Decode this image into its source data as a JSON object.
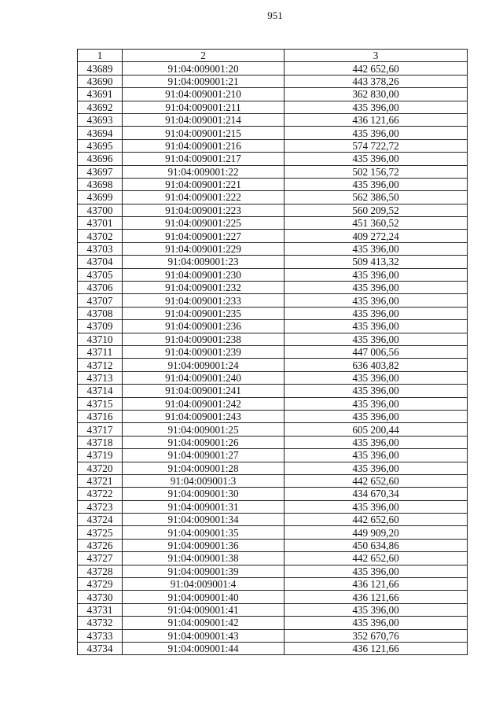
{
  "page_number": "951",
  "table": {
    "headers": [
      "1",
      "2",
      "3"
    ],
    "rows": [
      [
        "43689",
        "91:04:009001:20",
        "442 652,60"
      ],
      [
        "43690",
        "91:04:009001:21",
        "443 378,26"
      ],
      [
        "43691",
        "91:04:009001:210",
        "362 830,00"
      ],
      [
        "43692",
        "91:04:009001:211",
        "435 396,00"
      ],
      [
        "43693",
        "91:04:009001:214",
        "436 121,66"
      ],
      [
        "43694",
        "91:04:009001:215",
        "435 396,00"
      ],
      [
        "43695",
        "91:04:009001:216",
        "574 722,72"
      ],
      [
        "43696",
        "91:04:009001:217",
        "435 396,00"
      ],
      [
        "43697",
        "91:04:009001:22",
        "502 156,72"
      ],
      [
        "43698",
        "91:04:009001:221",
        "435 396,00"
      ],
      [
        "43699",
        "91:04:009001:222",
        "562 386,50"
      ],
      [
        "43700",
        "91:04:009001:223",
        "560 209,52"
      ],
      [
        "43701",
        "91:04:009001:225",
        "451 360,52"
      ],
      [
        "43702",
        "91:04:009001:227",
        "409 272,24"
      ],
      [
        "43703",
        "91:04:009001:229",
        "435 396,00"
      ],
      [
        "43704",
        "91:04:009001:23",
        "509 413,32"
      ],
      [
        "43705",
        "91:04:009001:230",
        "435 396,00"
      ],
      [
        "43706",
        "91:04:009001:232",
        "435 396,00"
      ],
      [
        "43707",
        "91:04:009001:233",
        "435 396,00"
      ],
      [
        "43708",
        "91:04:009001:235",
        "435 396,00"
      ],
      [
        "43709",
        "91:04:009001:236",
        "435 396,00"
      ],
      [
        "43710",
        "91:04:009001:238",
        "435 396,00"
      ],
      [
        "43711",
        "91:04:009001:239",
        "447 006,56"
      ],
      [
        "43712",
        "91:04:009001:24",
        "636 403,82"
      ],
      [
        "43713",
        "91:04:009001:240",
        "435 396,00"
      ],
      [
        "43714",
        "91:04:009001:241",
        "435 396,00"
      ],
      [
        "43715",
        "91:04:009001:242",
        "435 396,00"
      ],
      [
        "43716",
        "91:04:009001:243",
        "435 396,00"
      ],
      [
        "43717",
        "91:04:009001:25",
        "605 200,44"
      ],
      [
        "43718",
        "91:04:009001:26",
        "435 396,00"
      ],
      [
        "43719",
        "91:04:009001:27",
        "435 396,00"
      ],
      [
        "43720",
        "91:04:009001:28",
        "435 396,00"
      ],
      [
        "43721",
        "91:04:009001:3",
        "442 652,60"
      ],
      [
        "43722",
        "91:04:009001:30",
        "434 670,34"
      ],
      [
        "43723",
        "91:04:009001:31",
        "435 396,00"
      ],
      [
        "43724",
        "91:04:009001:34",
        "442 652,60"
      ],
      [
        "43725",
        "91:04:009001:35",
        "449 909,20"
      ],
      [
        "43726",
        "91:04:009001:36",
        "450 634,86"
      ],
      [
        "43727",
        "91:04:009001:38",
        "442 652,60"
      ],
      [
        "43728",
        "91:04:009001:39",
        "435 396,00"
      ],
      [
        "43729",
        "91:04:009001:4",
        "436 121,66"
      ],
      [
        "43730",
        "91:04:009001:40",
        "436 121,66"
      ],
      [
        "43731",
        "91:04:009001:41",
        "435 396,00"
      ],
      [
        "43732",
        "91:04:009001:42",
        "435 396,00"
      ],
      [
        "43733",
        "91:04:009001:43",
        "352 670,76"
      ],
      [
        "43734",
        "91:04:009001:44",
        "436 121,66"
      ]
    ]
  }
}
